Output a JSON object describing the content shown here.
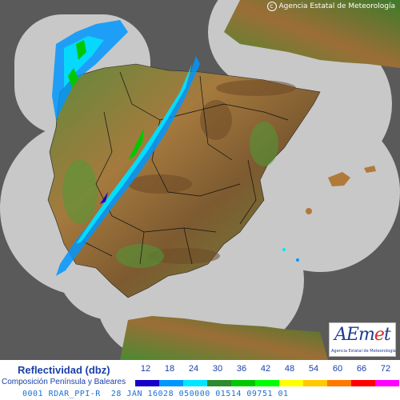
{
  "copyright": "Agencia Estatal de Meteorología",
  "logo": {
    "brand_a": "AE",
    "brand_m": "m",
    "brand_e": "e",
    "brand_t": "t",
    "subtitle": "Agencia Estatal de Meteorología"
  },
  "legend": {
    "title": "Reflectividad (dbz)",
    "subtitle": "Composición Península y Baleares",
    "scale": [
      {
        "value": "12",
        "color": "#1400c8"
      },
      {
        "value": "18",
        "color": "#0096ff"
      },
      {
        "value": "24",
        "color": "#00e6ff"
      },
      {
        "value": "30",
        "color": "#2d8a2d"
      },
      {
        "value": "36",
        "color": "#00c800"
      },
      {
        "value": "42",
        "color": "#00ff00"
      },
      {
        "value": "48",
        "color": "#ffff00"
      },
      {
        "value": "54",
        "color": "#ffc800"
      },
      {
        "value": "60",
        "color": "#ff7800"
      },
      {
        "value": "66",
        "color": "#ff0000"
      },
      {
        "value": "72",
        "color": "#ff00ff"
      }
    ]
  },
  "footer": "0001 RDAR_PPI-R  28 JAN 16028 050000 01514 09751 01",
  "colors": {
    "sea": "#5a5a5a",
    "coverage": "#c8c8c8",
    "border": "#000000"
  }
}
